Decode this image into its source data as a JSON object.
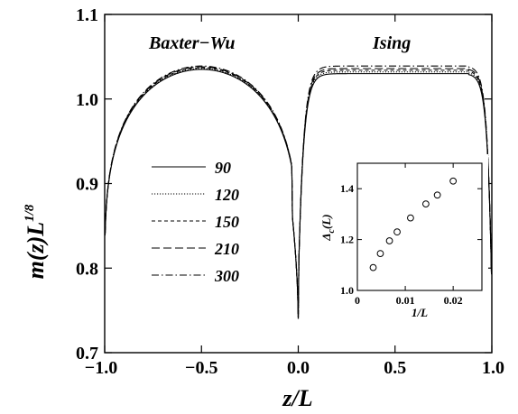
{
  "chart_data": {
    "type": "line",
    "xlabel": "z/L",
    "ylabel_main": "m(z)L",
    "ylabel_exp": "1/8",
    "xlim": [
      -1.0,
      1.0
    ],
    "ylim": [
      0.7,
      1.1
    ],
    "x_ticks": [
      "−1.0",
      "−0.5",
      "0.0",
      "0.5",
      "1.0"
    ],
    "x_tick_values": [
      -1.0,
      -0.5,
      0.0,
      0.5,
      1.0
    ],
    "y_ticks": [
      "0.7",
      "0.8",
      "0.9",
      "1.0",
      "1.1"
    ],
    "y_tick_values": [
      0.7,
      0.8,
      0.9,
      1.0,
      1.1
    ],
    "annotations": [
      "Baxter−Wu",
      "Ising"
    ],
    "legend_placement": "center-left",
    "series": [
      {
        "name": "90",
        "dash": "solid",
        "bw_peak": 1.035,
        "is_plateau": 1.03
      },
      {
        "name": "120",
        "dash": "dotted",
        "bw_peak": 1.036,
        "is_plateau": 1.032
      },
      {
        "name": "150",
        "dash": "short",
        "bw_peak": 1.037,
        "is_plateau": 1.034
      },
      {
        "name": "210",
        "dash": "long",
        "bw_peak": 1.038,
        "is_plateau": 1.036
      },
      {
        "name": "300",
        "dash": "dashdot",
        "bw_peak": 1.039,
        "is_plateau": 1.039
      }
    ],
    "inset": {
      "type": "scatter",
      "xlabel": "1/L",
      "ylabel_main": "Δ",
      "ylabel_sub": "c",
      "ylabel_tail": "(L)",
      "xlim": [
        0.0,
        0.026
      ],
      "ylim": [
        1.0,
        1.5
      ],
      "x_ticks": [
        "0",
        "0.01",
        "0.02"
      ],
      "x_tick_values": [
        0.0,
        0.01,
        0.02
      ],
      "y_ticks": [
        "1.0",
        "1.2",
        "1.4"
      ],
      "y_tick_values": [
        1.0,
        1.2,
        1.4
      ],
      "points": [
        {
          "x": 0.0033,
          "y": 1.09
        },
        {
          "x": 0.0048,
          "y": 1.145
        },
        {
          "x": 0.0067,
          "y": 1.195
        },
        {
          "x": 0.0083,
          "y": 1.23
        },
        {
          "x": 0.0111,
          "y": 1.285
        },
        {
          "x": 0.0143,
          "y": 1.34
        },
        {
          "x": 0.0167,
          "y": 1.375
        },
        {
          "x": 0.02,
          "y": 1.43
        }
      ]
    }
  }
}
